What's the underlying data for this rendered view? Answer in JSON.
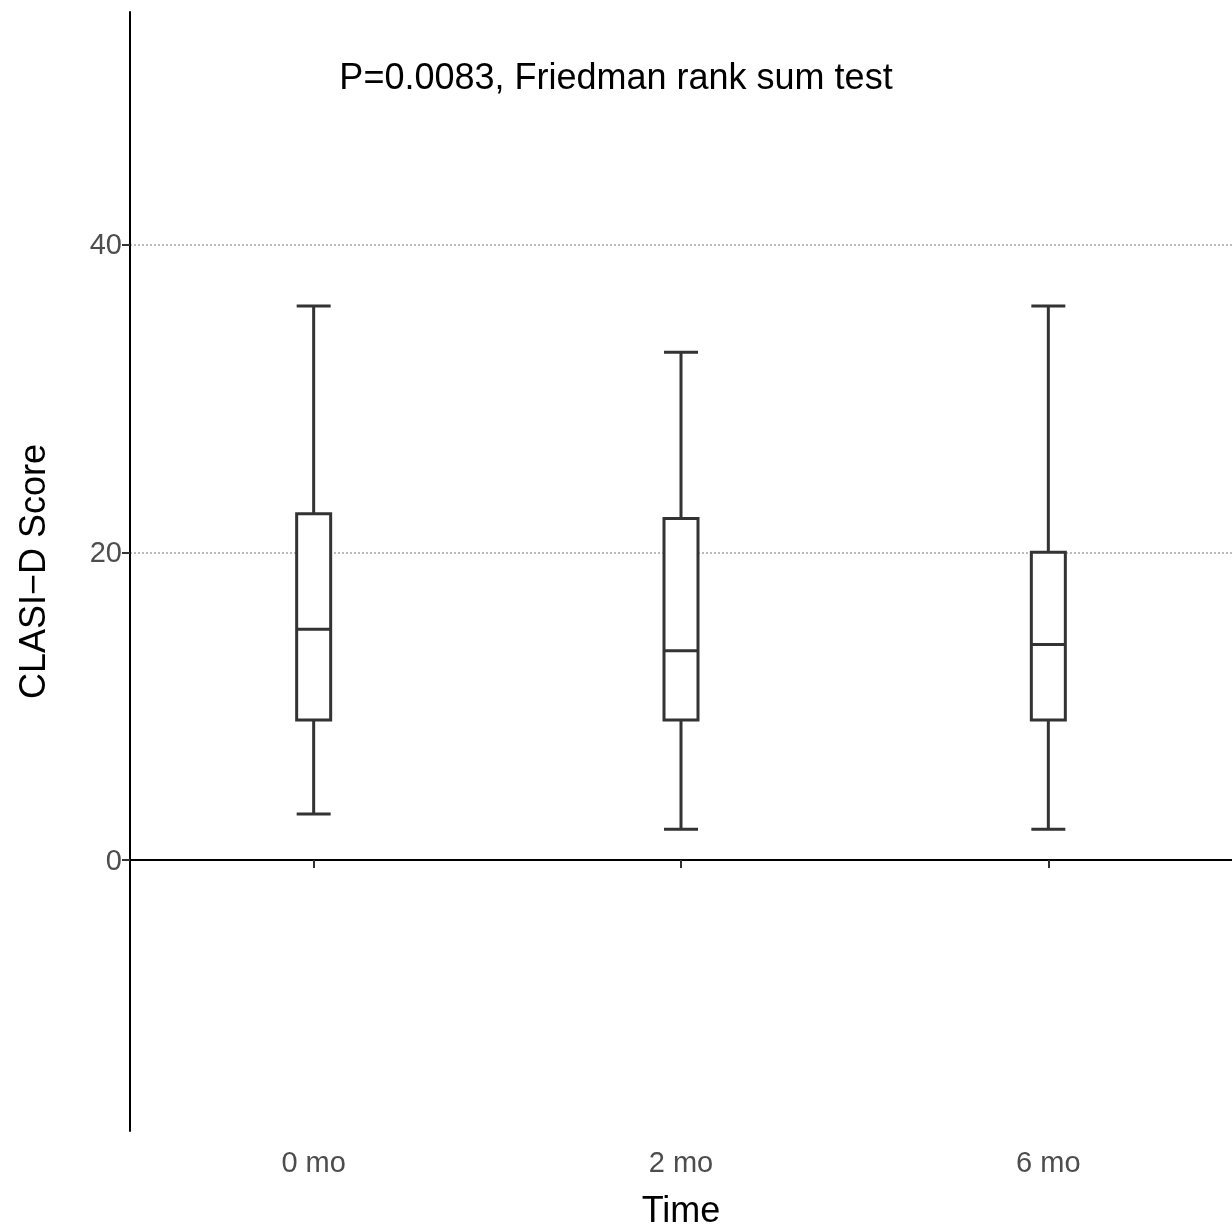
{
  "chart_data": {
    "type": "box",
    "xlabel": "Time",
    "ylabel": "CLASI−D Score",
    "categories": [
      "0 mo",
      "2 mo",
      "6 mo"
    ],
    "boxes": [
      {
        "low": 3,
        "q1": 9.1,
        "median": 15,
        "q3": 22.5,
        "high": 36
      },
      {
        "low": 2,
        "q1": 9.1,
        "median": 13.6,
        "q3": 22.2,
        "high": 33
      },
      {
        "low": 2,
        "q1": 9.1,
        "median": 14,
        "q3": 20,
        "high": 36
      }
    ],
    "ylim": [
      -17.6,
      55.1
    ],
    "yticks": [
      0,
      20,
      40
    ],
    "grid": "y",
    "line_style": "dotted",
    "annotations": [
      "P=0.0083, Friedman rank sum test"
    ]
  }
}
